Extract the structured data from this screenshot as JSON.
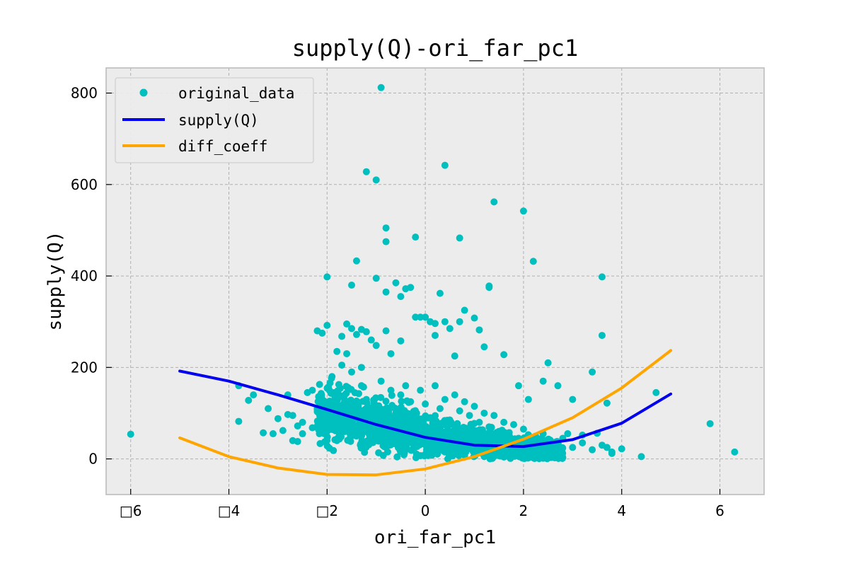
{
  "chart_data": {
    "type": "scatter",
    "title": "supply(Q)-ori_far_pc1",
    "xlabel": "ori_far_pc1",
    "ylabel": "supply(Q)",
    "xlim": [
      -6.5,
      6.9
    ],
    "ylim": [
      -78,
      855
    ],
    "x_ticks": [
      -6,
      -4,
      -2,
      0,
      2,
      4,
      6
    ],
    "x_tick_labels": [
      "□6",
      "□4",
      "□2",
      "0",
      "2",
      "4",
      "6"
    ],
    "y_ticks": [
      0,
      200,
      400,
      600,
      800
    ],
    "y_tick_labels": [
      "0",
      "200",
      "400",
      "600",
      "800"
    ],
    "grid": true,
    "legend_position": "top-left",
    "colors": {
      "original_data": "#00bfbf",
      "supply": "#0000ee",
      "diff_coeff": "#ffa500",
      "background": "#ececec",
      "grid": "#b0b0b0"
    },
    "series": [
      {
        "name": "original_data",
        "kind": "scatter",
        "points": [
          [
            -6.0,
            54
          ],
          [
            -3.8,
            160
          ],
          [
            -3.8,
            82
          ],
          [
            -3.6,
            128
          ],
          [
            -3.5,
            140
          ],
          [
            -3.3,
            57
          ],
          [
            -3.2,
            110
          ],
          [
            -3.1,
            55
          ],
          [
            -3.0,
            88
          ],
          [
            -2.9,
            62
          ],
          [
            -2.8,
            97
          ],
          [
            -2.8,
            140
          ],
          [
            -2.7,
            40
          ],
          [
            -2.7,
            95
          ],
          [
            -2.6,
            72
          ],
          [
            -2.6,
            38
          ],
          [
            -2.5,
            80
          ],
          [
            -2.5,
            55
          ],
          [
            -2.4,
            145
          ],
          [
            -2.3,
            150
          ],
          [
            -2.3,
            68
          ],
          [
            -2.2,
            110
          ],
          [
            -2.2,
            280
          ],
          [
            -2.1,
            275
          ],
          [
            -2.0,
            292
          ],
          [
            -2.0,
            398
          ],
          [
            -1.9,
            180
          ],
          [
            -1.8,
            235
          ],
          [
            -1.8,
            120
          ],
          [
            -1.7,
            268
          ],
          [
            -1.7,
            205
          ],
          [
            -1.6,
            230
          ],
          [
            -1.6,
            295
          ],
          [
            -1.5,
            285
          ],
          [
            -1.5,
            380
          ],
          [
            -1.5,
            190
          ],
          [
            -1.4,
            272
          ],
          [
            -1.4,
            433
          ],
          [
            -1.3,
            283
          ],
          [
            -1.3,
            200
          ],
          [
            -1.2,
            278
          ],
          [
            -1.2,
            628
          ],
          [
            -1.1,
            260
          ],
          [
            -1.0,
            395
          ],
          [
            -1.0,
            248
          ],
          [
            -1.0,
            610
          ],
          [
            -0.9,
            812
          ],
          [
            -0.8,
            505
          ],
          [
            -0.8,
            475
          ],
          [
            -0.8,
            280
          ],
          [
            -0.8,
            365
          ],
          [
            -0.7,
            230
          ],
          [
            -0.6,
            385
          ],
          [
            -0.5,
            355
          ],
          [
            -0.5,
            258
          ],
          [
            -0.4,
            372
          ],
          [
            -0.3,
            375
          ],
          [
            -0.2,
            310
          ],
          [
            -0.2,
            485
          ],
          [
            -0.1,
            310
          ],
          [
            0.0,
            310
          ],
          [
            0.1,
            300
          ],
          [
            0.2,
            296
          ],
          [
            0.2,
            270
          ],
          [
            0.3,
            362
          ],
          [
            0.4,
            300
          ],
          [
            0.4,
            642
          ],
          [
            0.5,
            285
          ],
          [
            0.6,
            225
          ],
          [
            0.7,
            483
          ],
          [
            0.7,
            300
          ],
          [
            0.8,
            325
          ],
          [
            1.0,
            308
          ],
          [
            1.1,
            282
          ],
          [
            1.2,
            245
          ],
          [
            1.3,
            378
          ],
          [
            1.3,
            375
          ],
          [
            1.4,
            562
          ],
          [
            1.6,
            228
          ],
          [
            1.9,
            160
          ],
          [
            2.0,
            542
          ],
          [
            2.1,
            130
          ],
          [
            2.2,
            432
          ],
          [
            2.4,
            170
          ],
          [
            2.5,
            210
          ],
          [
            2.7,
            160
          ],
          [
            2.9,
            55
          ],
          [
            3.0,
            130
          ],
          [
            3.2,
            52
          ],
          [
            3.4,
            190
          ],
          [
            3.5,
            56
          ],
          [
            3.6,
            270
          ],
          [
            3.6,
            398
          ],
          [
            3.7,
            122
          ],
          [
            3.7,
            25
          ],
          [
            3.8,
            12
          ],
          [
            4.0,
            22
          ],
          [
            4.4,
            5
          ],
          [
            4.7,
            145
          ],
          [
            5.8,
            77
          ],
          [
            6.3,
            15
          ],
          [
            -1.8,
            140
          ],
          [
            -1.6,
            110
          ],
          [
            -1.5,
            90
          ],
          [
            -1.3,
            160
          ],
          [
            -1.2,
            130
          ],
          [
            -1.0,
            115
          ],
          [
            -0.9,
            170
          ],
          [
            -0.7,
            150
          ],
          [
            -0.6,
            100
          ],
          [
            -0.5,
            140
          ],
          [
            -0.4,
            160
          ],
          [
            -0.3,
            125
          ],
          [
            -0.2,
            95
          ],
          [
            -0.1,
            150
          ],
          [
            0.0,
            120
          ],
          [
            0.1,
            90
          ],
          [
            0.2,
            160
          ],
          [
            0.3,
            110
          ],
          [
            0.4,
            130
          ],
          [
            0.5,
            85
          ],
          [
            0.6,
            140
          ],
          [
            0.7,
            105
          ],
          [
            0.8,
            125
          ],
          [
            0.9,
            95
          ],
          [
            1.0,
            115
          ],
          [
            1.1,
            80
          ],
          [
            1.2,
            100
          ],
          [
            1.3,
            70
          ],
          [
            1.4,
            95
          ],
          [
            1.5,
            60
          ],
          [
            1.6,
            80
          ],
          [
            1.7,
            55
          ],
          [
            1.8,
            75
          ],
          [
            1.9,
            45
          ],
          [
            2.0,
            65
          ],
          [
            2.2,
            40
          ],
          [
            2.4,
            55
          ],
          [
            2.6,
            30
          ],
          [
            2.8,
            45
          ],
          [
            3.0,
            25
          ],
          [
            3.2,
            35
          ],
          [
            3.4,
            20
          ],
          [
            3.6,
            30
          ],
          [
            3.8,
            15
          ],
          [
            -2.0,
            60
          ],
          [
            -1.8,
            40
          ],
          [
            -1.6,
            70
          ],
          [
            -1.4,
            50
          ],
          [
            -1.2,
            30
          ],
          [
            -1.0,
            45
          ],
          [
            -0.8,
            25
          ],
          [
            -0.6,
            35
          ],
          [
            -0.4,
            20
          ],
          [
            -0.2,
            30
          ],
          [
            0.0,
            10
          ],
          [
            0.2,
            25
          ],
          [
            0.4,
            15
          ],
          [
            0.6,
            20
          ],
          [
            0.8,
            8
          ],
          [
            1.0,
            15
          ],
          [
            1.2,
            5
          ],
          [
            1.4,
            12
          ],
          [
            1.6,
            4
          ],
          [
            1.8,
            10
          ],
          [
            2.0,
            3
          ],
          [
            2.2,
            8
          ],
          [
            2.4,
            2
          ],
          [
            2.6,
            6
          ],
          [
            2.8,
            3
          ]
        ],
        "dense_core": {
          "x_range": [
            -2.2,
            2.8
          ],
          "center_curve": [
            [
              -2.2,
              100
            ],
            [
              -1.0,
              78
            ],
            [
              0.0,
              52
            ],
            [
              1.0,
              35
            ],
            [
              2.0,
              22
            ],
            [
              2.8,
              14
            ]
          ],
          "spread": 45
        }
      },
      {
        "name": "supply(Q)",
        "kind": "line",
        "x": [
          -5,
          -4,
          -3,
          -2,
          -1,
          0,
          1,
          2,
          3,
          4,
          5
        ],
        "y": [
          192,
          170,
          140,
          108,
          75,
          47,
          30,
          27,
          42,
          78,
          142
        ]
      },
      {
        "name": "diff_coeff",
        "kind": "line",
        "x": [
          -5,
          -4,
          -3,
          -2,
          -1,
          0,
          1,
          2,
          3,
          4,
          5
        ],
        "y": [
          46,
          5,
          -20,
          -34,
          -35,
          -22,
          5,
          43,
          90,
          155,
          237
        ]
      }
    ]
  }
}
